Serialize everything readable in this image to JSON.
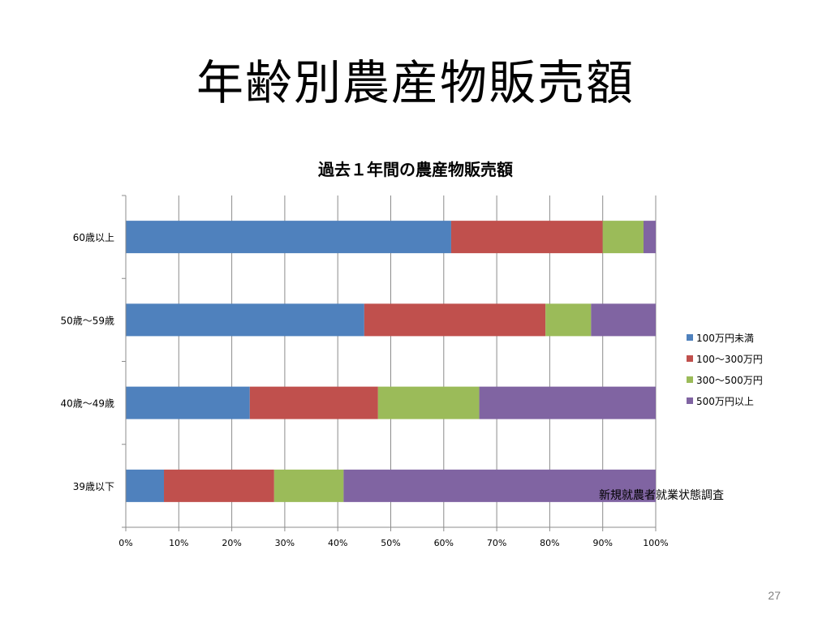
{
  "slide": {
    "title": "年齢別農産物販売額",
    "source_note": "新規就農者就業状態調査",
    "page_number": "27"
  },
  "chart_data": {
    "type": "bar",
    "orientation": "horizontal",
    "stacked": "percent",
    "title": "過去１年間の農産物販売額",
    "categories": [
      "60歳以上",
      "50歳～59歳",
      "40歳～49歳",
      "39歳以下"
    ],
    "series": [
      {
        "name": "100万円未満",
        "color": "#4F81BD",
        "values": [
          61.4,
          45.0,
          23.4,
          7.2
        ]
      },
      {
        "name": "100～300万円",
        "color": "#C0504D",
        "values": [
          28.6,
          34.2,
          24.2,
          20.8
        ]
      },
      {
        "name": "300～500万円",
        "color": "#9BBB59",
        "values": [
          7.7,
          8.6,
          19.1,
          13.1
        ]
      },
      {
        "name": "500万円以上",
        "color": "#8064A2",
        "values": [
          2.3,
          12.2,
          33.3,
          58.9
        ]
      }
    ],
    "xaxis": {
      "ticks": [
        "0%",
        "10%",
        "20%",
        "30%",
        "40%",
        "50%",
        "60%",
        "70%",
        "80%",
        "90%",
        "100%"
      ],
      "range": [
        0,
        100
      ]
    },
    "grid": "vertical",
    "legend_position": "right"
  }
}
